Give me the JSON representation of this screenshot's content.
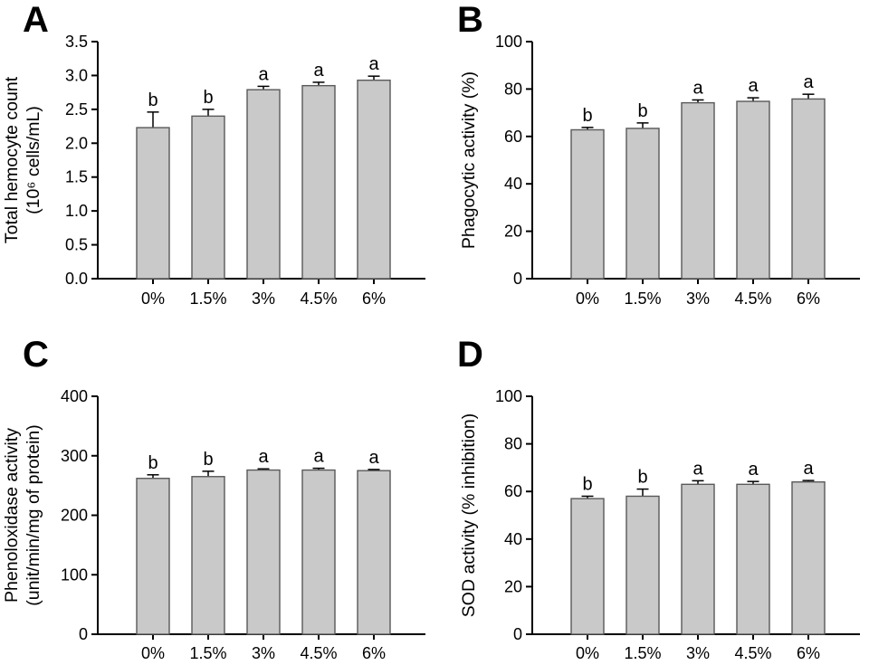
{
  "figure": {
    "background_color": "#ffffff",
    "bar_fill_color": "#c9c9c9",
    "bar_border_color": "#595959",
    "axis_color": "#000000",
    "text_color": "#000000",
    "categories": [
      "0%",
      "1.5%",
      "3%",
      "4.5%",
      "6%"
    ]
  },
  "chart_data": [
    {
      "panel": "A",
      "type": "bar",
      "title": "",
      "xlabel": "",
      "ylabel": "Total hemocyte count (10⁶ cells/mL)",
      "ylabel_lines": [
        "Total hemocyte count",
        "(10⁶ cells/mL)"
      ],
      "categories": [
        "0%",
        "1.5%",
        "3%",
        "4.5%",
        "6%"
      ],
      "values": [
        2.23,
        2.4,
        2.79,
        2.85,
        2.93
      ],
      "errors": [
        0.23,
        0.1,
        0.05,
        0.05,
        0.06
      ],
      "sig_letters": [
        "b",
        "b",
        "a",
        "a",
        "a"
      ],
      "ylim": [
        0,
        3.5
      ],
      "ytick_labels": [
        "0.0",
        "0.5",
        "1.0",
        "1.5",
        "2.0",
        "2.5",
        "3.0",
        "3.5"
      ],
      "grid": false,
      "legend_position": "none"
    },
    {
      "panel": "B",
      "type": "bar",
      "title": "",
      "xlabel": "",
      "ylabel": "Phagocytic activity (%)",
      "ylabel_lines": [
        "Phagocytic activity (%)"
      ],
      "categories": [
        "0%",
        "1.5%",
        "3%",
        "4.5%",
        "6%"
      ],
      "values": [
        62.8,
        63.4,
        74.2,
        74.8,
        75.8
      ],
      "errors": [
        1.0,
        2.3,
        1.2,
        1.5,
        2.0
      ],
      "sig_letters": [
        "b",
        "b",
        "a",
        "a",
        "a"
      ],
      "ylim": [
        0,
        100
      ],
      "ytick_labels": [
        "0",
        "20",
        "40",
        "60",
        "80",
        "100"
      ],
      "grid": false,
      "legend_position": "none"
    },
    {
      "panel": "C",
      "type": "bar",
      "title": "",
      "xlabel": "",
      "ylabel": "Phenoloxidase activity (unit/min/mg of protein)",
      "ylabel_lines": [
        "Phenoloxidase activity",
        "(unit/min/mg of protein)"
      ],
      "categories": [
        "0%",
        "1.5%",
        "3%",
        "4.5%",
        "6%"
      ],
      "values": [
        262,
        265,
        276,
        276,
        275
      ],
      "errors": [
        6,
        9,
        2,
        3,
        2
      ],
      "sig_letters": [
        "b",
        "b",
        "a",
        "a",
        "a"
      ],
      "ylim": [
        0,
        400
      ],
      "ytick_labels": [
        "0",
        "100",
        "200",
        "300",
        "400"
      ],
      "grid": false,
      "legend_position": "none"
    },
    {
      "panel": "D",
      "type": "bar",
      "title": "",
      "xlabel": "",
      "ylabel": "SOD activity (% inhibition)",
      "ylabel_lines": [
        "SOD activity (% inhibition)"
      ],
      "categories": [
        "0%",
        "1.5%",
        "3%",
        "4.5%",
        "6%"
      ],
      "values": [
        57,
        58,
        63,
        63,
        64
      ],
      "errors": [
        1.0,
        3.0,
        1.5,
        1.2,
        0.6
      ],
      "sig_letters": [
        "b",
        "b",
        "a",
        "a",
        "a"
      ],
      "ylim": [
        0,
        100
      ],
      "ytick_labels": [
        "0",
        "20",
        "40",
        "60",
        "80",
        "100"
      ],
      "grid": false,
      "legend_position": "none"
    }
  ]
}
